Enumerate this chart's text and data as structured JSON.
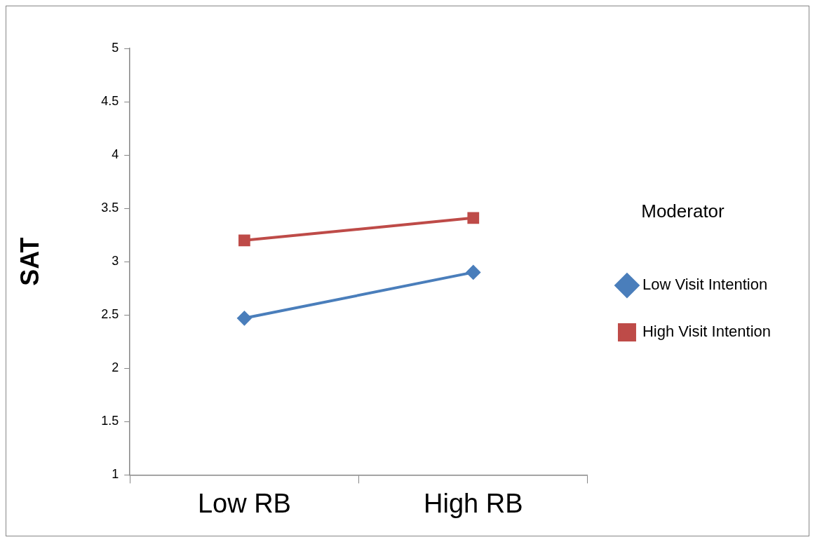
{
  "chart_data": {
    "type": "line",
    "ylabel": "SAT",
    "legend_title": "Moderator",
    "categories": [
      "Low RB",
      "High RB"
    ],
    "series": [
      {
        "name": "Low Visit Intention",
        "color": "#4a7ebb",
        "values": [
          2.47,
          2.9
        ],
        "marker": "diamond"
      },
      {
        "name": "High Visit Intention",
        "color": "#be4b48",
        "values": [
          3.2,
          3.41
        ],
        "marker": "square"
      }
    ],
    "ylim": [
      1,
      5
    ],
    "yticks": [
      1,
      1.5,
      2,
      2.5,
      3,
      3.5,
      4,
      4.5,
      5
    ],
    "grid": false,
    "legend": "right",
    "line_style": "solid"
  }
}
